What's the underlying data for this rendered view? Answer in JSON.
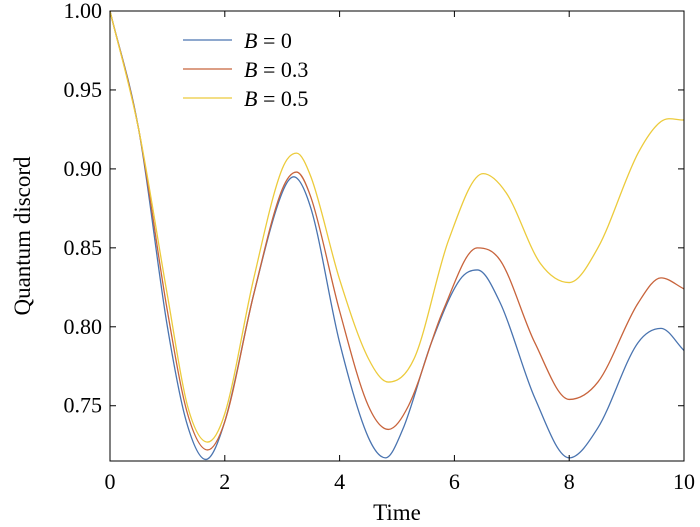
{
  "chart_data": {
    "type": "line",
    "xlabel": "Time",
    "ylabel": "Quantum discord",
    "xlim": [
      0,
      10
    ],
    "ylim": [
      0.715,
      1.0
    ],
    "xticks": [
      "0",
      "2",
      "4",
      "6",
      "8",
      "10"
    ],
    "yticks": [
      "0.75",
      "0.80",
      "0.85",
      "0.90",
      "0.95",
      "1.00"
    ],
    "grid": false,
    "legend_position": "top-left",
    "series": [
      {
        "name_var": "B",
        "name_value": "= 0",
        "color": "#4a74b0",
        "x": [
          0,
          0.5,
          1.0,
          1.33,
          1.67,
          2.0,
          2.5,
          3.0,
          3.2,
          3.5,
          4.0,
          4.5,
          4.8,
          5.1,
          5.6,
          6.1,
          6.4,
          6.8,
          7.4,
          8.0,
          8.5,
          9.2,
          9.6,
          10.0
        ],
        "y": [
          1.0,
          0.925,
          0.8,
          0.74,
          0.716,
          0.74,
          0.82,
          0.885,
          0.895,
          0.875,
          0.79,
          0.73,
          0.717,
          0.735,
          0.79,
          0.83,
          0.836,
          0.815,
          0.755,
          0.717,
          0.736,
          0.79,
          0.799,
          0.785
        ]
      },
      {
        "name_var": "B",
        "name_value": "= 0.3",
        "color": "#c8643c",
        "x": [
          0,
          0.5,
          1.0,
          1.35,
          1.7,
          2.0,
          2.5,
          3.0,
          3.25,
          3.5,
          4.0,
          4.5,
          4.85,
          5.2,
          5.8,
          6.4,
          6.8,
          7.4,
          8.0,
          8.5,
          9.2,
          9.6,
          10.0
        ],
        "y": [
          1.0,
          0.925,
          0.81,
          0.745,
          0.722,
          0.74,
          0.82,
          0.887,
          0.898,
          0.882,
          0.81,
          0.75,
          0.735,
          0.75,
          0.81,
          0.85,
          0.842,
          0.79,
          0.754,
          0.765,
          0.815,
          0.831,
          0.824
        ]
      },
      {
        "name_var": "B",
        "name_value": "= 0.5",
        "color": "#eccb3c",
        "x": [
          0,
          0.5,
          1.0,
          1.35,
          1.7,
          2.0,
          2.5,
          3.0,
          3.25,
          3.5,
          4.0,
          4.5,
          4.85,
          5.3,
          5.9,
          6.5,
          6.9,
          7.5,
          8.0,
          8.5,
          9.2,
          9.6,
          10.0
        ],
        "y": [
          1.0,
          0.925,
          0.82,
          0.75,
          0.727,
          0.745,
          0.83,
          0.9,
          0.91,
          0.895,
          0.83,
          0.78,
          0.765,
          0.78,
          0.855,
          0.897,
          0.885,
          0.84,
          0.828,
          0.85,
          0.91,
          0.93,
          0.931
        ]
      }
    ]
  }
}
